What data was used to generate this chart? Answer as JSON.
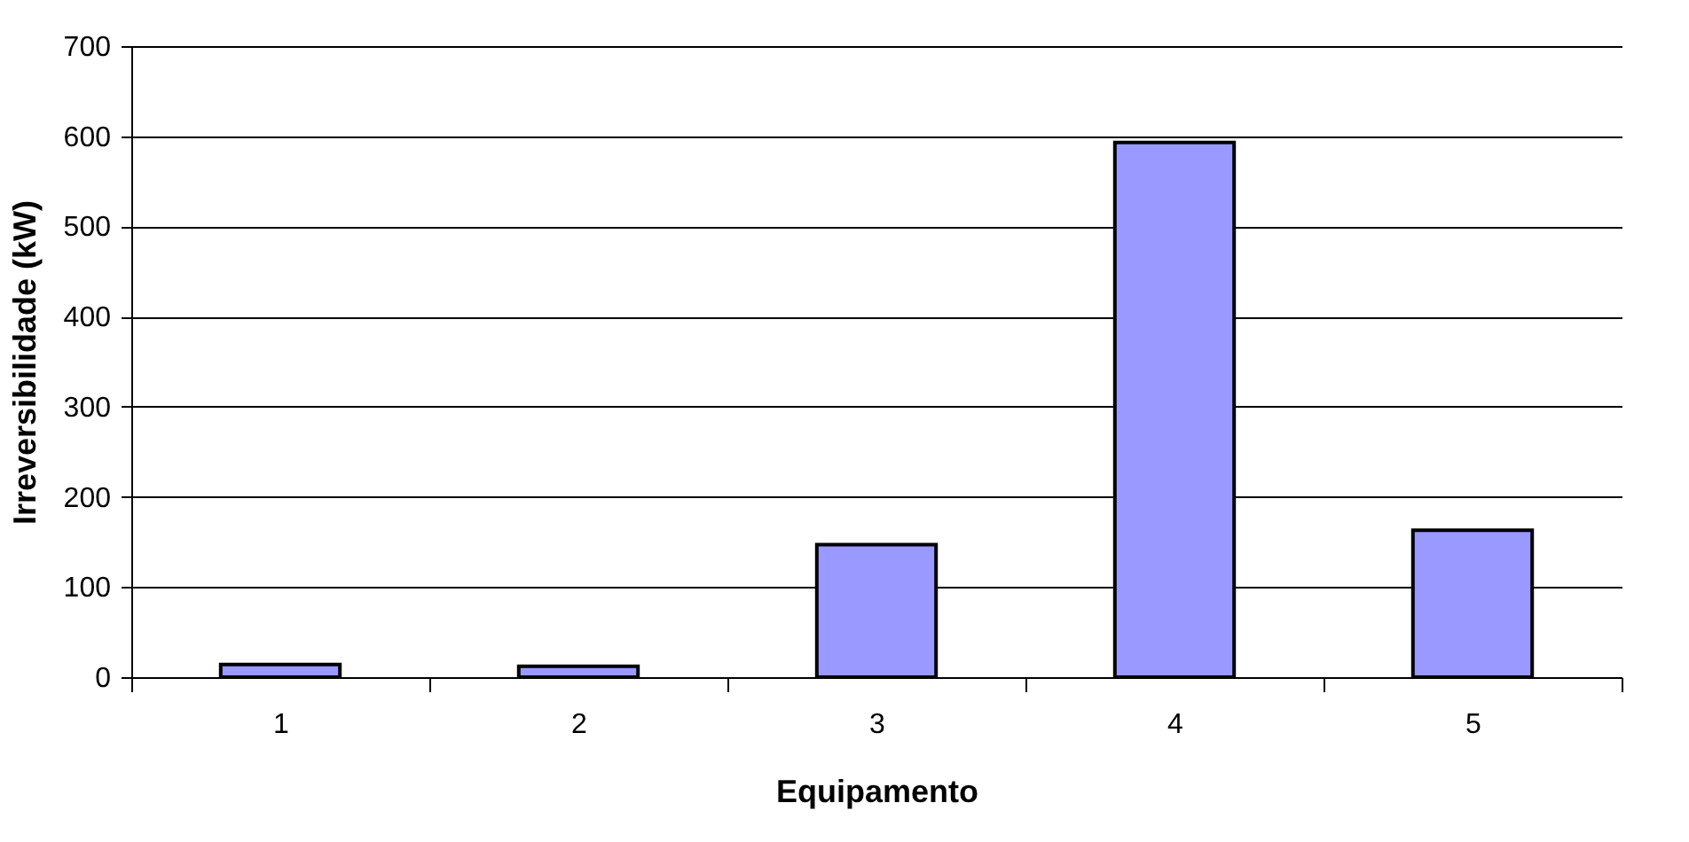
{
  "chart_data": {
    "type": "bar",
    "xlabel": "Equipamento",
    "ylabel": "Irreversibilidade (kW)",
    "categories": [
      "1",
      "2",
      "3",
      "4",
      "5"
    ],
    "values": [
      14,
      12,
      147,
      593,
      163
    ],
    "color": "#9999ff",
    "ylim": [
      0,
      700
    ],
    "yticks": [
      0,
      100,
      200,
      300,
      400,
      500,
      600,
      700
    ],
    "grid": "y"
  }
}
